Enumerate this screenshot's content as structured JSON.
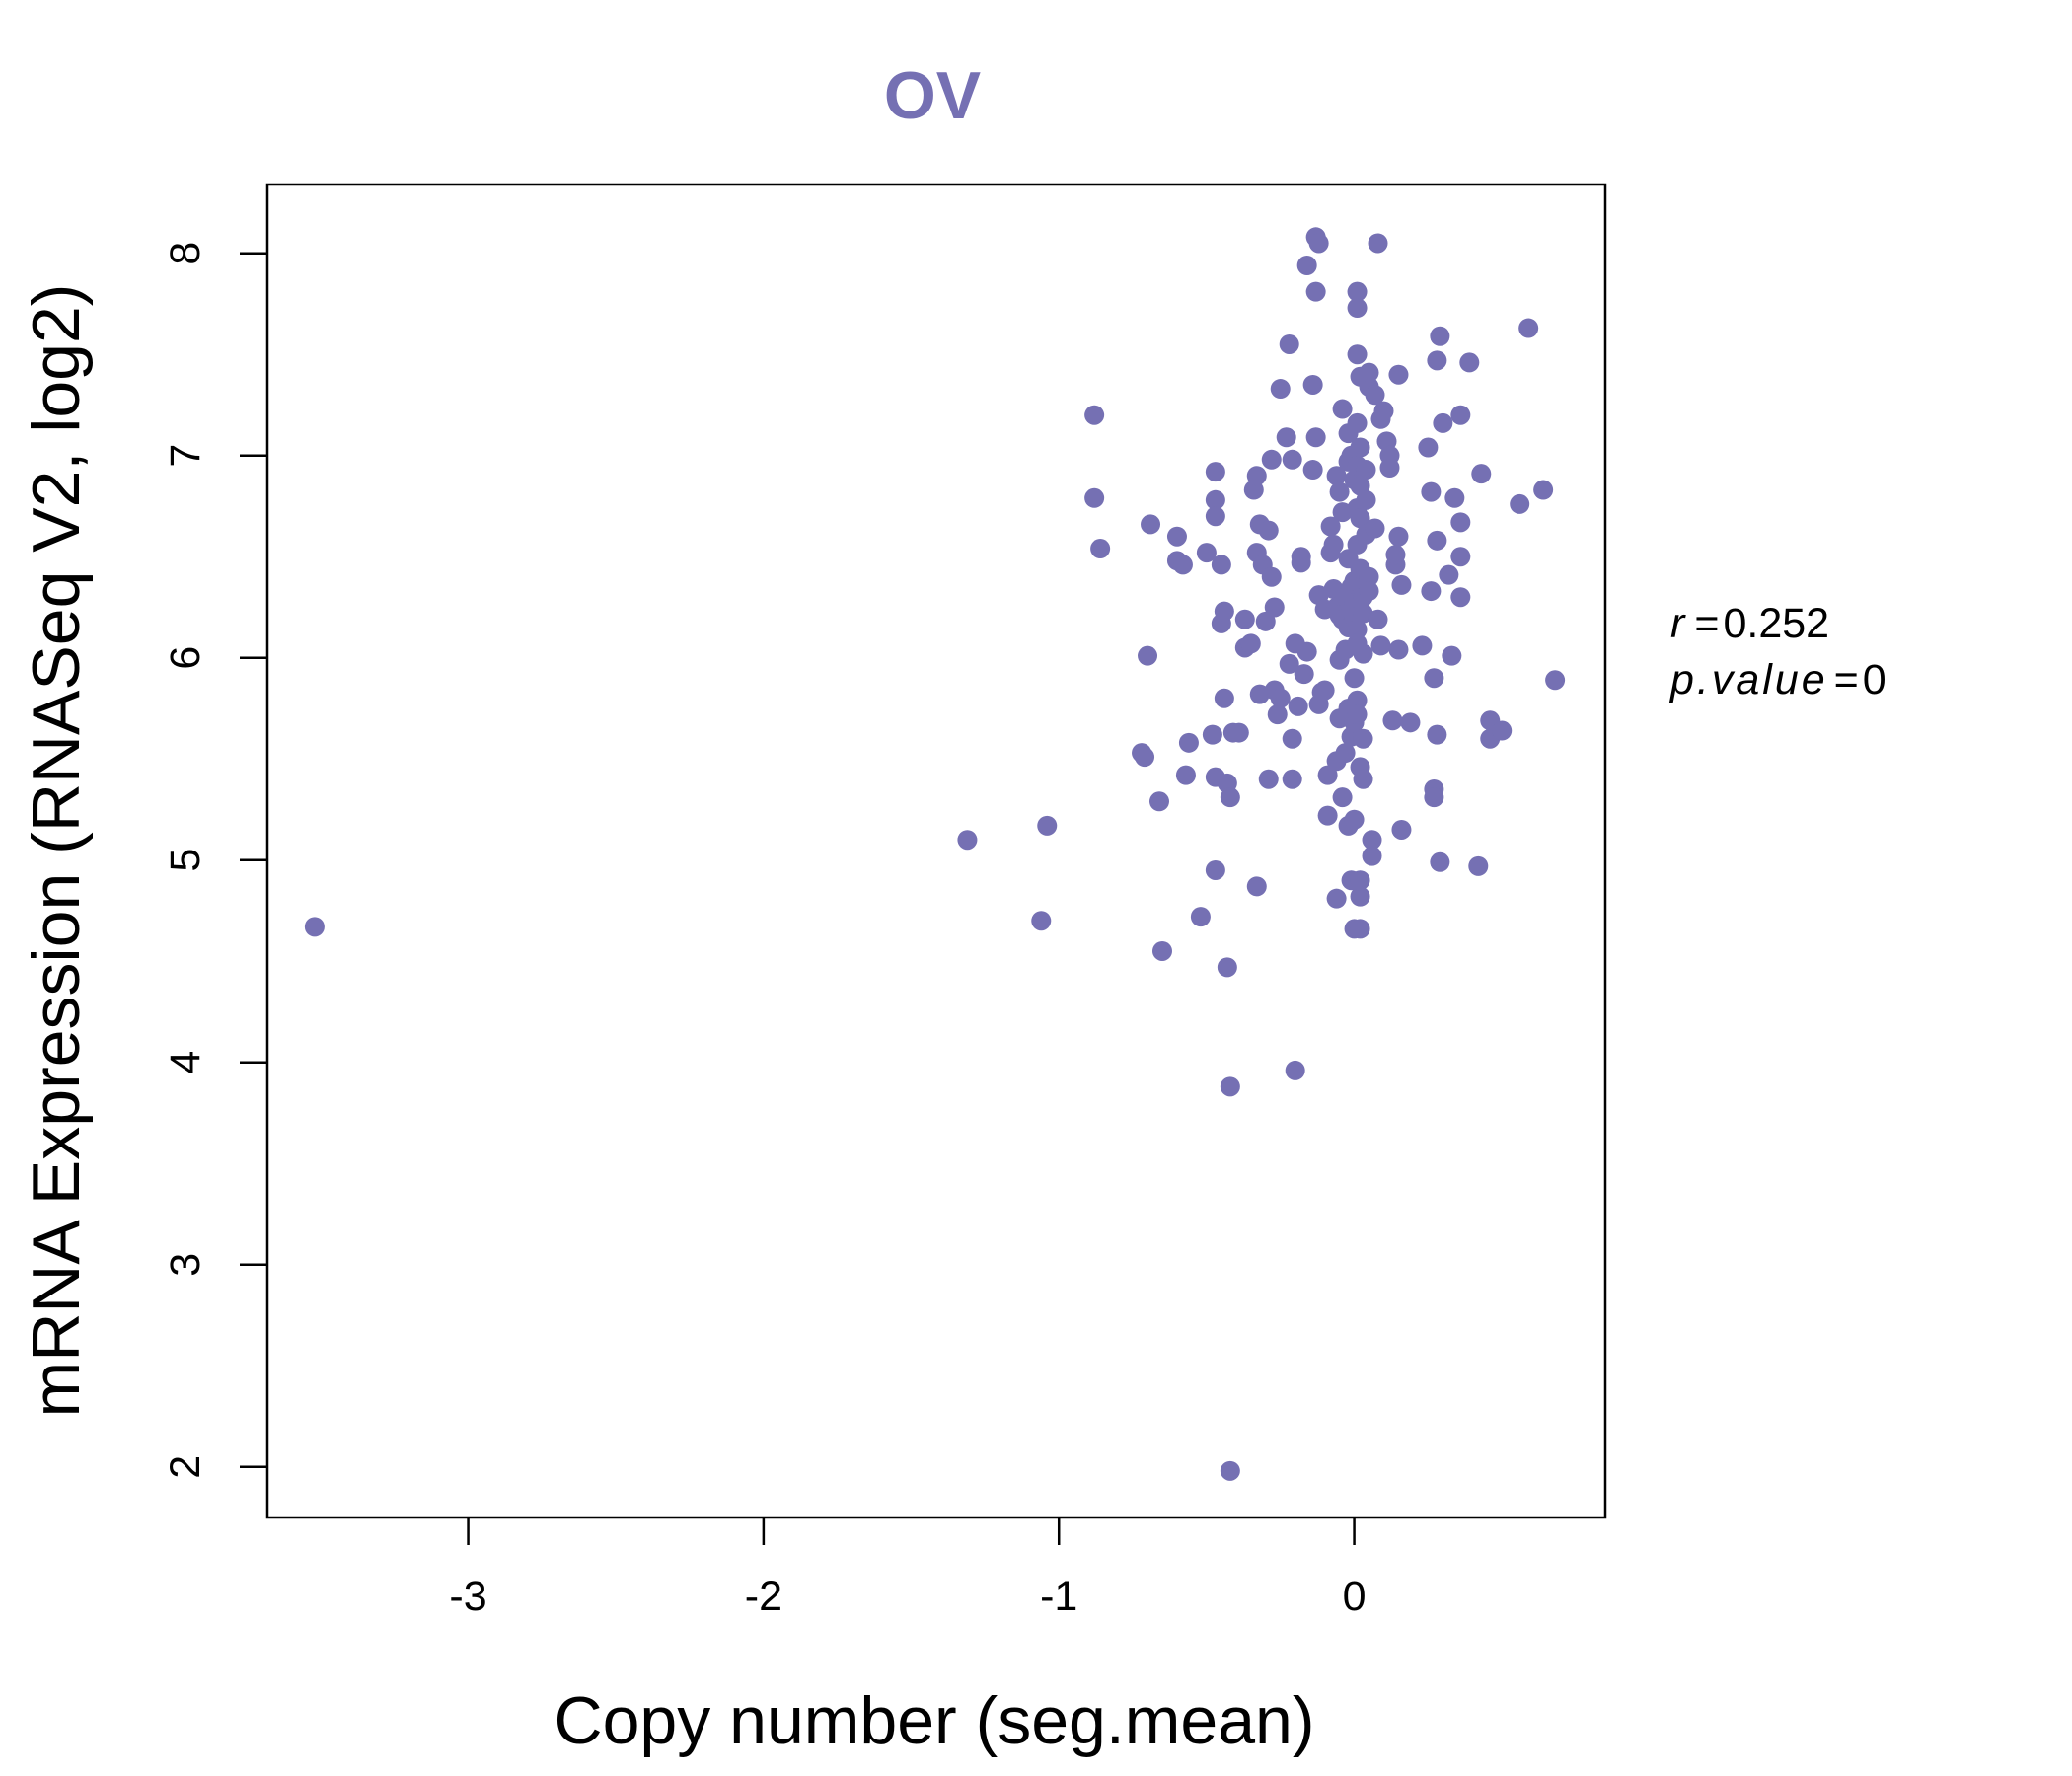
{
  "chart_data": {
    "type": "scatter",
    "title": "OV",
    "xlabel": "Copy number (seg.mean)",
    "ylabel": "mRNA Expression (RNASeq V2, log2)",
    "xlim": [
      -3.68,
      0.85
    ],
    "ylim": [
      1.75,
      8.34
    ],
    "x_ticks": [
      -3,
      -2,
      -1,
      0
    ],
    "x_tick_labels": [
      "-3",
      "-2",
      "-1",
      "0"
    ],
    "y_ticks": [
      2,
      3,
      4,
      5,
      6,
      7,
      8
    ],
    "y_tick_labels": [
      "2",
      "3",
      "4",
      "5",
      "6",
      "7",
      "8"
    ],
    "point_color": "#7570b3",
    "stats": {
      "r_label": "r",
      "r_value": "0.252",
      "p_label": "p.value",
      "p_value": "0"
    },
    "points": [
      [
        -3.52,
        4.67
      ],
      [
        -1.31,
        5.1
      ],
      [
        -1.04,
        5.17
      ],
      [
        -1.06,
        4.7
      ],
      [
        -0.88,
        7.2
      ],
      [
        -0.88,
        6.79
      ],
      [
        -0.86,
        6.54
      ],
      [
        -0.69,
        6.66
      ],
      [
        -0.7,
        6.01
      ],
      [
        -0.72,
        5.53
      ],
      [
        -0.71,
        5.51
      ],
      [
        -0.66,
        5.29
      ],
      [
        -0.65,
        4.55
      ],
      [
        -0.6,
        6.6
      ],
      [
        -0.6,
        6.48
      ],
      [
        -0.58,
        6.46
      ],
      [
        -0.57,
        5.42
      ],
      [
        -0.56,
        5.58
      ],
      [
        -0.52,
        4.72
      ],
      [
        -0.5,
        6.52
      ],
      [
        -0.48,
        5.62
      ],
      [
        -0.47,
        6.92
      ],
      [
        -0.47,
        6.78
      ],
      [
        -0.47,
        6.7
      ],
      [
        -0.47,
        5.41
      ],
      [
        -0.47,
        4.95
      ],
      [
        -0.45,
        6.46
      ],
      [
        -0.45,
        6.17
      ],
      [
        -0.44,
        6.23
      ],
      [
        -0.44,
        5.8
      ],
      [
        -0.43,
        5.38
      ],
      [
        -0.42,
        5.31
      ],
      [
        -0.43,
        4.47
      ],
      [
        -0.42,
        3.88
      ],
      [
        -0.42,
        1.98
      ],
      [
        -0.41,
        5.63
      ],
      [
        -0.39,
        5.63
      ],
      [
        -0.37,
        6.05
      ],
      [
        -0.37,
        6.19
      ],
      [
        -0.35,
        6.07
      ],
      [
        -0.34,
        6.83
      ],
      [
        -0.33,
        6.9
      ],
      [
        -0.33,
        6.52
      ],
      [
        -0.33,
        4.87
      ],
      [
        -0.32,
        6.66
      ],
      [
        -0.32,
        5.82
      ],
      [
        -0.31,
        6.46
      ],
      [
        -0.3,
        6.18
      ],
      [
        -0.29,
        6.63
      ],
      [
        -0.29,
        5.4
      ],
      [
        -0.28,
        6.98
      ],
      [
        -0.28,
        6.4
      ],
      [
        -0.27,
        6.25
      ],
      [
        -0.27,
        5.84
      ],
      [
        -0.26,
        5.72
      ],
      [
        -0.25,
        5.8
      ],
      [
        -0.25,
        7.33
      ],
      [
        -0.23,
        7.09
      ],
      [
        -0.22,
        7.55
      ],
      [
        -0.22,
        5.97
      ],
      [
        -0.21,
        6.98
      ],
      [
        -0.21,
        5.6
      ],
      [
        -0.21,
        5.4
      ],
      [
        -0.2,
        6.07
      ],
      [
        -0.2,
        3.96
      ],
      [
        -0.19,
        5.76
      ],
      [
        -0.18,
        6.47
      ],
      [
        -0.18,
        6.5
      ],
      [
        -0.17,
        5.92
      ],
      [
        -0.16,
        7.94
      ],
      [
        -0.16,
        6.03
      ],
      [
        -0.14,
        6.93
      ],
      [
        -0.14,
        7.35
      ],
      [
        -0.13,
        7.09
      ],
      [
        -0.13,
        7.81
      ],
      [
        -0.13,
        8.08
      ],
      [
        -0.12,
        8.05
      ],
      [
        -0.12,
        6.31
      ],
      [
        -0.12,
        5.77
      ],
      [
        -0.11,
        5.83
      ],
      [
        -0.1,
        5.84
      ],
      [
        -0.1,
        6.24
      ],
      [
        -0.09,
        5.42
      ],
      [
        -0.09,
        5.22
      ],
      [
        -0.08,
        6.65
      ],
      [
        -0.08,
        6.52
      ],
      [
        -0.07,
        6.56
      ],
      [
        -0.07,
        6.34
      ],
      [
        -0.06,
        6.25
      ],
      [
        -0.06,
        5.49
      ],
      [
        -0.06,
        6.9
      ],
      [
        -0.06,
        4.81
      ],
      [
        -0.05,
        6.82
      ],
      [
        -0.05,
        6.21
      ],
      [
        -0.05,
        5.99
      ],
      [
        -0.05,
        5.7
      ],
      [
        -0.04,
        6.19
      ],
      [
        -0.04,
        7.23
      ],
      [
        -0.04,
        6.72
      ],
      [
        -0.04,
        5.31
      ],
      [
        -0.03,
        6.3
      ],
      [
        -0.03,
        6.04
      ],
      [
        -0.03,
        5.53
      ],
      [
        -0.02,
        5.75
      ],
      [
        -0.02,
        6.97
      ],
      [
        -0.02,
        7.11
      ],
      [
        -0.02,
        6.49
      ],
      [
        -0.02,
        6.15
      ],
      [
        -0.02,
        5.17
      ],
      [
        -0.01,
        4.9
      ],
      [
        -0.01,
        6.35
      ],
      [
        -0.01,
        5.61
      ],
      [
        -0.01,
        7.0
      ],
      [
        0.0,
        6.88
      ],
      [
        0.0,
        6.38
      ],
      [
        0.0,
        6.27
      ],
      [
        0.0,
        6.2
      ],
      [
        0.0,
        5.9
      ],
      [
        0.0,
        5.68
      ],
      [
        0.0,
        5.2
      ],
      [
        0.0,
        4.66
      ],
      [
        0.01,
        7.81
      ],
      [
        0.01,
        7.73
      ],
      [
        0.01,
        7.5
      ],
      [
        0.01,
        7.16
      ],
      [
        0.01,
        6.95
      ],
      [
        0.01,
        6.74
      ],
      [
        0.01,
        6.56
      ],
      [
        0.01,
        6.14
      ],
      [
        0.01,
        6.07
      ],
      [
        0.01,
        5.79
      ],
      [
        0.01,
        5.72
      ],
      [
        0.02,
        5.46
      ],
      [
        0.02,
        4.82
      ],
      [
        0.02,
        4.9
      ],
      [
        0.02,
        4.66
      ],
      [
        0.02,
        7.39
      ],
      [
        0.02,
        7.04
      ],
      [
        0.02,
        6.85
      ],
      [
        0.02,
        6.69
      ],
      [
        0.02,
        6.44
      ],
      [
        0.03,
        6.3
      ],
      [
        0.03,
        6.22
      ],
      [
        0.03,
        6.02
      ],
      [
        0.03,
        5.6
      ],
      [
        0.03,
        5.4
      ],
      [
        0.04,
        6.93
      ],
      [
        0.04,
        6.78
      ],
      [
        0.04,
        6.61
      ],
      [
        0.05,
        7.34
      ],
      [
        0.05,
        7.41
      ],
      [
        0.05,
        6.4
      ],
      [
        0.05,
        6.33
      ],
      [
        0.06,
        5.1
      ],
      [
        0.06,
        5.02
      ],
      [
        0.07,
        7.3
      ],
      [
        0.07,
        6.64
      ],
      [
        0.08,
        6.19
      ],
      [
        0.08,
        8.05
      ],
      [
        0.09,
        7.18
      ],
      [
        0.09,
        6.06
      ],
      [
        0.1,
        7.22
      ],
      [
        0.11,
        7.07
      ],
      [
        0.12,
        7.0
      ],
      [
        0.12,
        6.94
      ],
      [
        0.13,
        5.69
      ],
      [
        0.14,
        6.46
      ],
      [
        0.14,
        6.51
      ],
      [
        0.15,
        6.6
      ],
      [
        0.15,
        7.4
      ],
      [
        0.15,
        6.04
      ],
      [
        0.16,
        6.36
      ],
      [
        0.16,
        5.15
      ],
      [
        0.19,
        5.68
      ],
      [
        0.23,
        6.06
      ],
      [
        0.25,
        7.04
      ],
      [
        0.26,
        6.33
      ],
      [
        0.26,
        6.82
      ],
      [
        0.27,
        5.9
      ],
      [
        0.27,
        5.35
      ],
      [
        0.27,
        5.31
      ],
      [
        0.28,
        7.47
      ],
      [
        0.28,
        6.58
      ],
      [
        0.28,
        5.62
      ],
      [
        0.29,
        7.59
      ],
      [
        0.29,
        4.99
      ],
      [
        0.3,
        7.16
      ],
      [
        0.32,
        6.41
      ],
      [
        0.33,
        6.01
      ],
      [
        0.34,
        6.79
      ],
      [
        0.36,
        6.3
      ],
      [
        0.36,
        6.5
      ],
      [
        0.36,
        6.67
      ],
      [
        0.36,
        7.2
      ],
      [
        0.39,
        7.46
      ],
      [
        0.42,
        4.97
      ],
      [
        0.43,
        6.91
      ],
      [
        0.46,
        5.69
      ],
      [
        0.46,
        5.6
      ],
      [
        0.5,
        5.64
      ],
      [
        0.56,
        6.76
      ],
      [
        0.59,
        7.63
      ],
      [
        0.64,
        6.83
      ],
      [
        0.68,
        5.89
      ]
    ]
  }
}
